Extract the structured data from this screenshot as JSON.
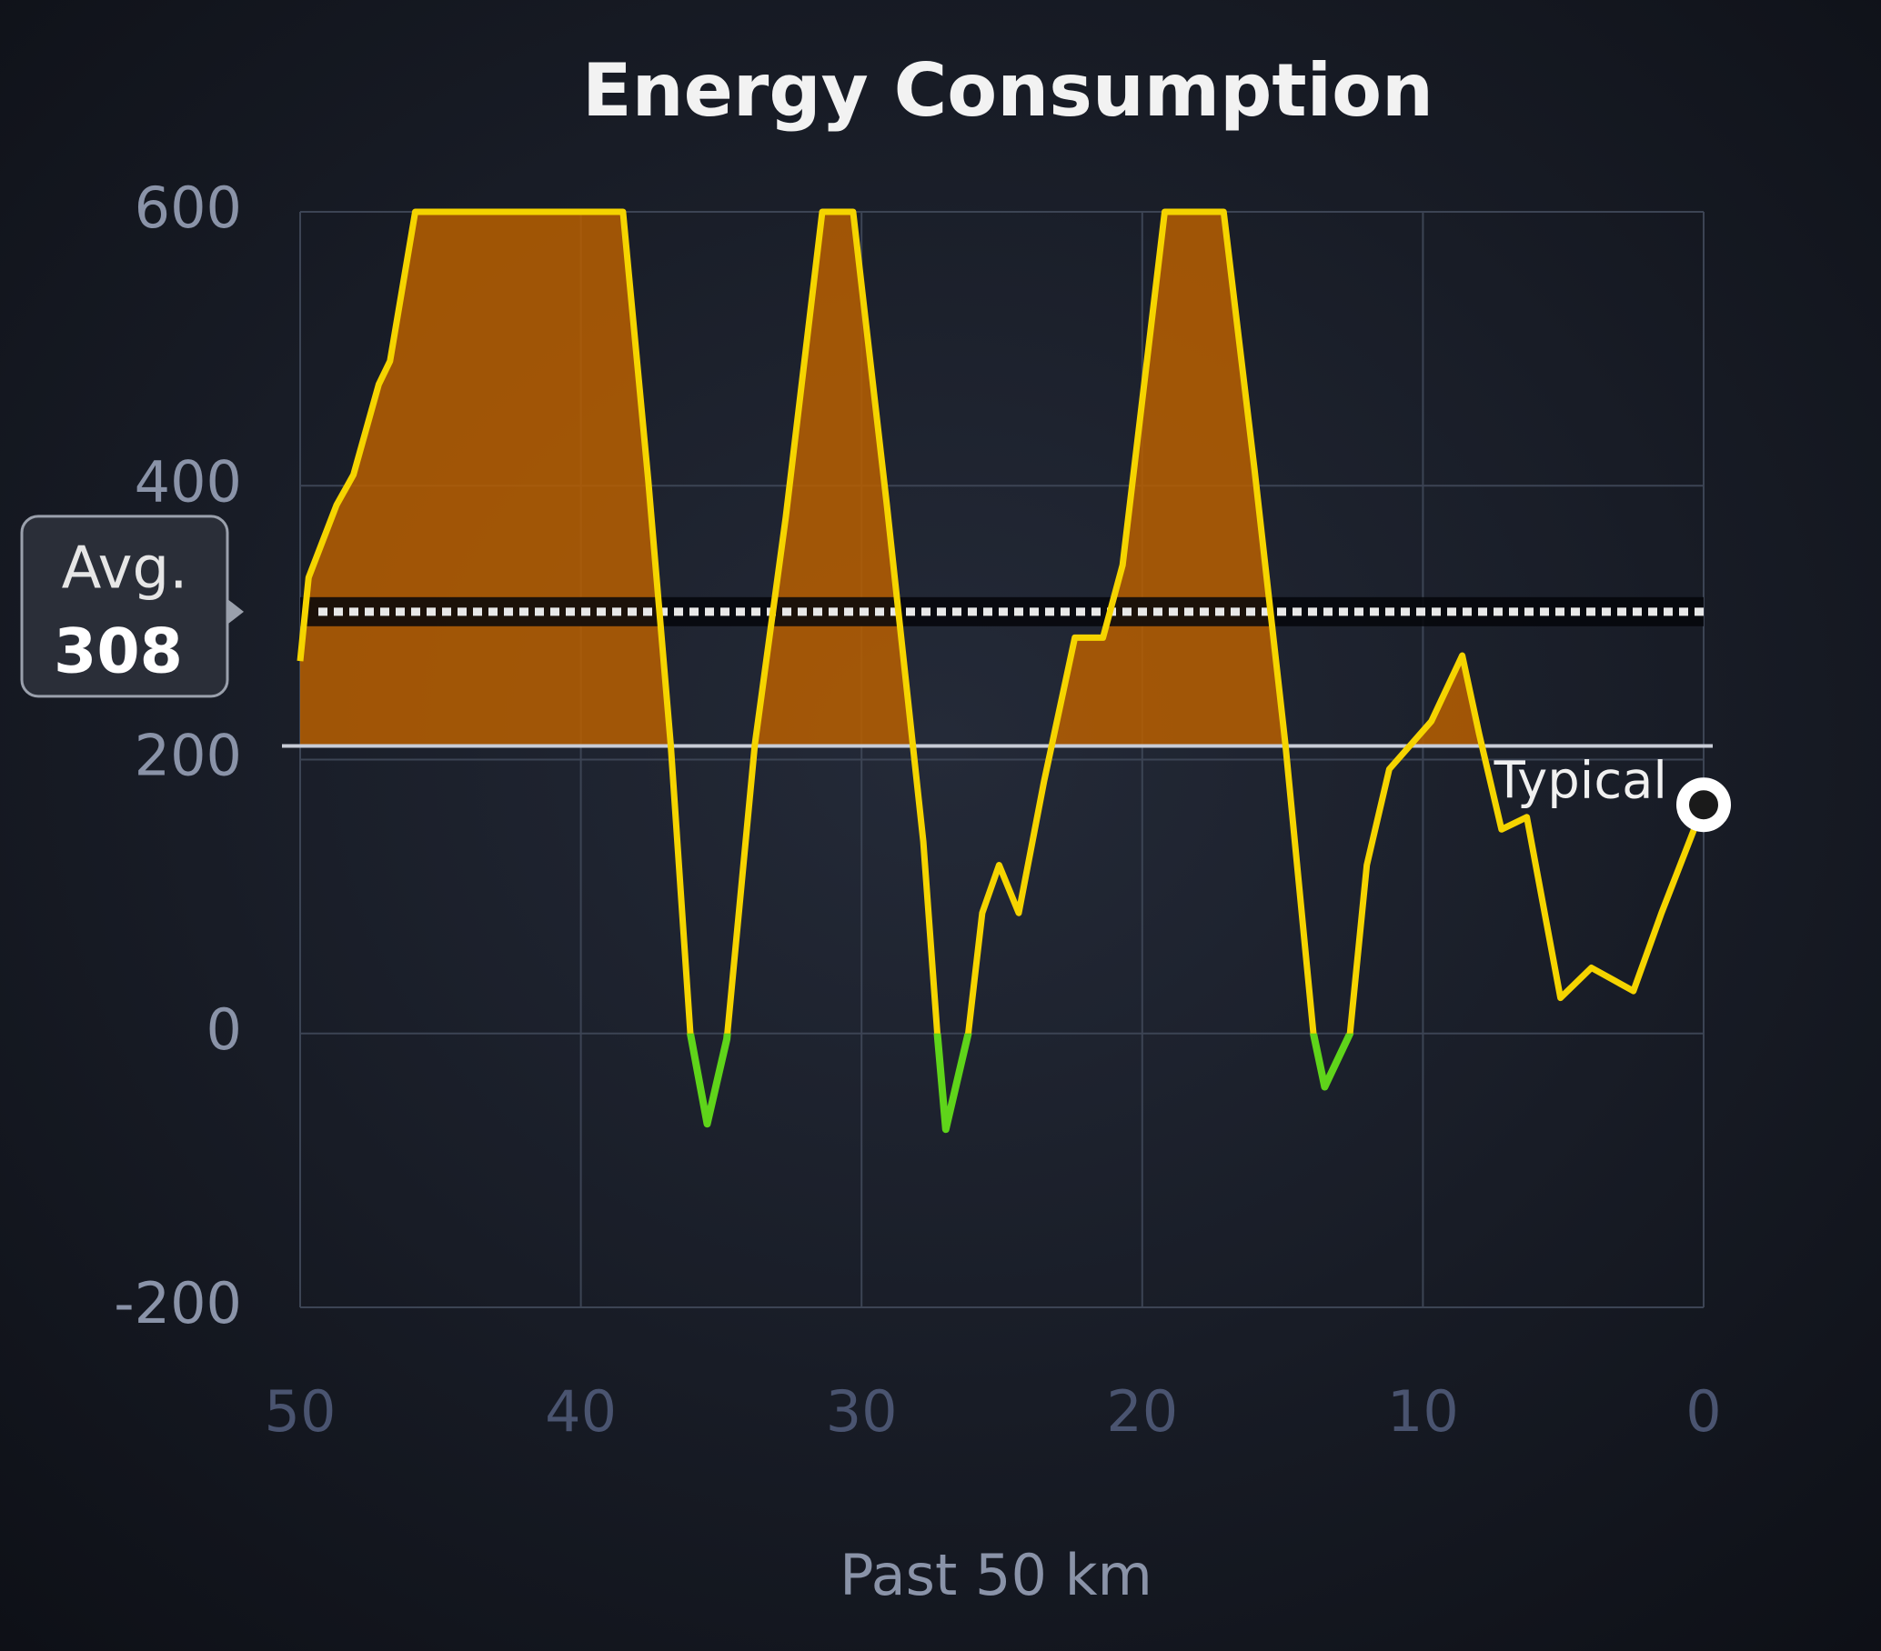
{
  "chart_data": {
    "type": "line",
    "title": "Energy Consumption",
    "x_label": "Past 50 km",
    "xlim": [
      50,
      0
    ],
    "ylim": [
      -200,
      600
    ],
    "xticks": [
      50,
      40,
      30,
      20,
      10,
      0
    ],
    "yticks": [
      -200,
      0,
      200,
      400,
      600
    ],
    "grid": true,
    "x": [
      50,
      49.7,
      48.7,
      48.1,
      47.2,
      46.8,
      45.9,
      38.5,
      37.6,
      36.8,
      36.1,
      35.5,
      34.8,
      33.8,
      32.7,
      31.4,
      30.3,
      29.1,
      27.8,
      27.3,
      27.0,
      26.2,
      25.7,
      25.1,
      24.4,
      23.5,
      22.4,
      21.4,
      20.7,
      19.2,
      17.1,
      16.0,
      14.9,
      13.9,
      13.5,
      12.6,
      12.0,
      11.2,
      9.7,
      8.6,
      8.0,
      7.2,
      6.3,
      5.1,
      4.0,
      2.5,
      1.5,
      0
    ],
    "series": [
      {
        "color": "#f5d400",
        "fill_color": "#b85f00",
        "regen_color": "#5fd41a",
        "values": [
          272,
          333,
          386,
          408,
          474,
          491,
          600,
          600,
          404,
          211,
          0,
          -66,
          -4,
          211,
          377,
          600,
          600,
          386,
          140,
          0,
          -70,
          0,
          88,
          123,
          88,
          184,
          289,
          289,
          342,
          600,
          600,
          412,
          211,
          0,
          -39,
          0,
          123,
          193,
          228,
          276,
          219,
          149,
          158,
          26,
          48,
          31,
          88,
          167
        ]
      }
    ],
    "average": {
      "label": "Avg.",
      "value": 308
    },
    "typical": {
      "label": "Typical",
      "value": 210
    }
  }
}
